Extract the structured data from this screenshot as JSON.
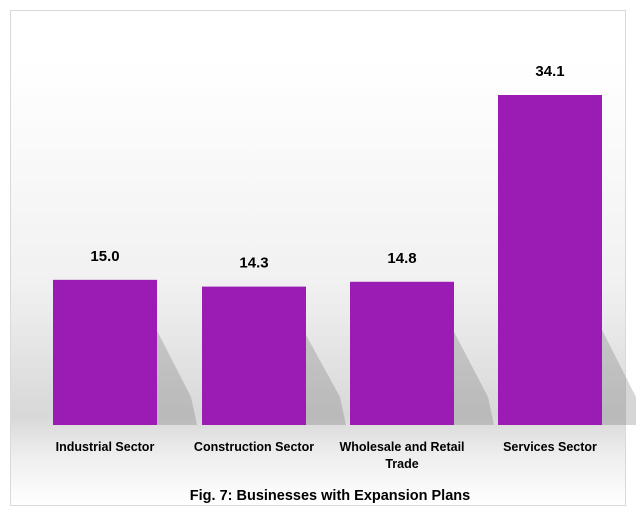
{
  "chart_data": {
    "type": "bar",
    "title": "Fig. 7: Businesses with Expansion Plans",
    "categories": [
      "Industrial Sector",
      "Construction Sector",
      "Wholesale and Retail Trade",
      "Services Sector"
    ],
    "category_lines": [
      [
        "Industrial Sector"
      ],
      [
        "Construction Sector"
      ],
      [
        "Wholesale and Retail",
        "Trade"
      ],
      [
        "Services Sector"
      ]
    ],
    "values": [
      15.0,
      14.3,
      14.8,
      34.1
    ],
    "data_labels": [
      "15.0",
      "14.3",
      "14.8",
      "34.1"
    ],
    "xlabel": "",
    "ylabel": "",
    "ylim": [
      0,
      40
    ],
    "grid": false,
    "legend": "none",
    "bar_color": "#9b1bb5"
  }
}
